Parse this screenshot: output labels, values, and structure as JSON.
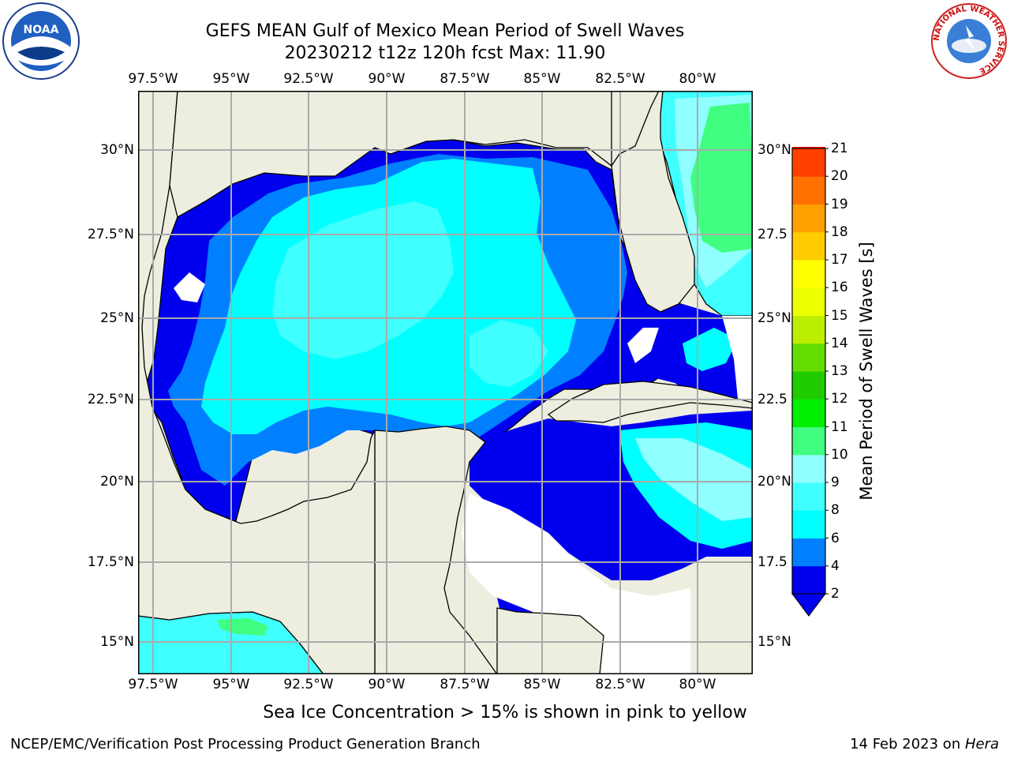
{
  "header": {
    "title_line1": "GEFS MEAN Gulf of Mexico Mean Period of Swell Waves",
    "title_line2": "20230212 t12z 120h fcst   Max: 11.90"
  },
  "logos": {
    "left_icon": "noaa-logo",
    "right_icon": "national-weather-service-logo",
    "noaa_text": "NOAA",
    "nws_ring_text": "NATIONAL WEATHER SERVICE"
  },
  "map": {
    "region": "Gulf of Mexico",
    "lon_labels": [
      "97.5°W",
      "95°W",
      "92.5°W",
      "90°W",
      "87.5°W",
      "85°W",
      "82.5°W",
      "80°W"
    ],
    "lat_labels_left": [
      "30°N",
      "27.5°N",
      "25°N",
      "22.5°N",
      "20°N",
      "17.5°N",
      "15°N"
    ],
    "lat_labels_right": [
      "30°N",
      "27.5",
      "25°N",
      "22.5",
      "20°N",
      "17.5",
      "15°N"
    ],
    "lon_range": [
      -98,
      -79.25
    ],
    "lat_range": [
      14,
      31.8
    ],
    "grid": true,
    "colors": {
      "land": "#eeeee0",
      "no_data": "#ffffff",
      "grid": "#aaaaaa",
      "coastline": "#000000"
    }
  },
  "colorbar": {
    "label": "Mean Period of Swell Waves [s]",
    "tick_labels": [
      "2",
      "4",
      "6",
      "8",
      "9",
      "10",
      "11",
      "12",
      "13",
      "14",
      "15",
      "16",
      "17",
      "18",
      "19",
      "20",
      "21"
    ],
    "bin_colors": [
      "#0000ee",
      "#0080ff",
      "#00ffff",
      "#40ffff",
      "#90ffff",
      "#40ff80",
      "#00ee00",
      "#20cc00",
      "#66dd00",
      "#bbee00",
      "#eeff00",
      "#ffff00",
      "#ffcc00",
      "#ffa000",
      "#ff7000",
      "#ff4000",
      "#ff0000"
    ],
    "under_color": "#0000ee",
    "extend": "min"
  },
  "note": "Sea Ice Concentration > 15% is shown in pink to yellow",
  "footer": {
    "left": "NCEP/EMC/Verification Post Processing Product Generation Branch",
    "date": "14 Feb 2023 on ",
    "machine": "Hera"
  }
}
